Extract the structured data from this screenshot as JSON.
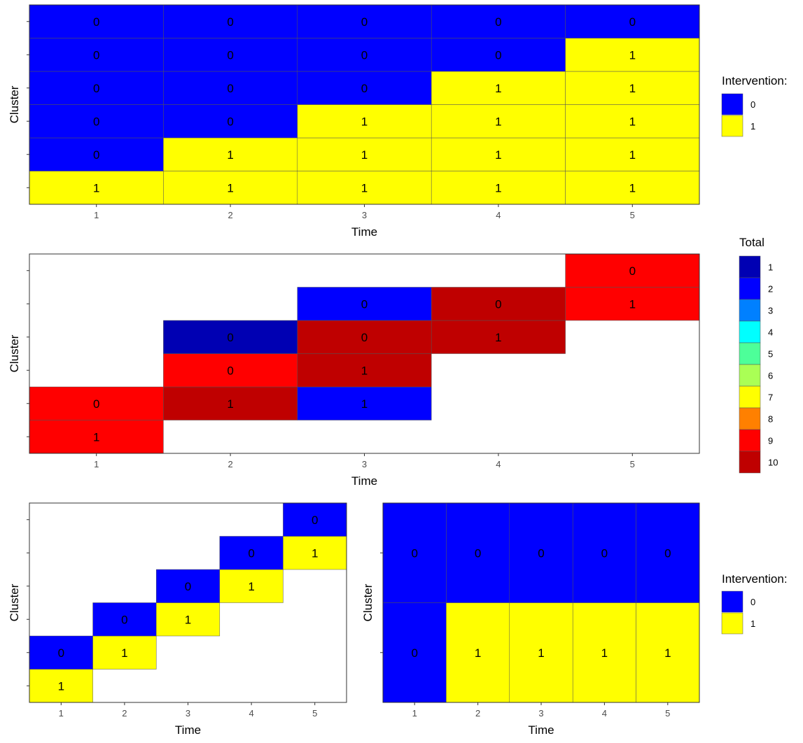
{
  "chart_data": [
    {
      "type": "heatmap",
      "id": "p1",
      "xlabel": "Time",
      "ylabel": "Cluster",
      "x_ticks": [
        "1",
        "2",
        "3",
        "4",
        "5"
      ],
      "n_clusters": 6,
      "fill_by": "intervention",
      "cells": [
        {
          "time": 1,
          "cluster": 1,
          "intervention": 1,
          "label": "1"
        },
        {
          "time": 2,
          "cluster": 1,
          "intervention": 1,
          "label": "1"
        },
        {
          "time": 3,
          "cluster": 1,
          "intervention": 1,
          "label": "1"
        },
        {
          "time": 4,
          "cluster": 1,
          "intervention": 1,
          "label": "1"
        },
        {
          "time": 5,
          "cluster": 1,
          "intervention": 1,
          "label": "1"
        },
        {
          "time": 1,
          "cluster": 2,
          "intervention": 0,
          "label": "0"
        },
        {
          "time": 2,
          "cluster": 2,
          "intervention": 1,
          "label": "1"
        },
        {
          "time": 3,
          "cluster": 2,
          "intervention": 1,
          "label": "1"
        },
        {
          "time": 4,
          "cluster": 2,
          "intervention": 1,
          "label": "1"
        },
        {
          "time": 5,
          "cluster": 2,
          "intervention": 1,
          "label": "1"
        },
        {
          "time": 1,
          "cluster": 3,
          "intervention": 0,
          "label": "0"
        },
        {
          "time": 2,
          "cluster": 3,
          "intervention": 0,
          "label": "0"
        },
        {
          "time": 3,
          "cluster": 3,
          "intervention": 1,
          "label": "1"
        },
        {
          "time": 4,
          "cluster": 3,
          "intervention": 1,
          "label": "1"
        },
        {
          "time": 5,
          "cluster": 3,
          "intervention": 1,
          "label": "1"
        },
        {
          "time": 1,
          "cluster": 4,
          "intervention": 0,
          "label": "0"
        },
        {
          "time": 2,
          "cluster": 4,
          "intervention": 0,
          "label": "0"
        },
        {
          "time": 3,
          "cluster": 4,
          "intervention": 0,
          "label": "0"
        },
        {
          "time": 4,
          "cluster": 4,
          "intervention": 1,
          "label": "1"
        },
        {
          "time": 5,
          "cluster": 4,
          "intervention": 1,
          "label": "1"
        },
        {
          "time": 1,
          "cluster": 5,
          "intervention": 0,
          "label": "0"
        },
        {
          "time": 2,
          "cluster": 5,
          "intervention": 0,
          "label": "0"
        },
        {
          "time": 3,
          "cluster": 5,
          "intervention": 0,
          "label": "0"
        },
        {
          "time": 4,
          "cluster": 5,
          "intervention": 0,
          "label": "0"
        },
        {
          "time": 5,
          "cluster": 5,
          "intervention": 1,
          "label": "1"
        },
        {
          "time": 1,
          "cluster": 6,
          "intervention": 0,
          "label": "0"
        },
        {
          "time": 2,
          "cluster": 6,
          "intervention": 0,
          "label": "0"
        },
        {
          "time": 3,
          "cluster": 6,
          "intervention": 0,
          "label": "0"
        },
        {
          "time": 4,
          "cluster": 6,
          "intervention": 0,
          "label": "0"
        },
        {
          "time": 5,
          "cluster": 6,
          "intervention": 0,
          "label": "0"
        }
      ]
    },
    {
      "type": "heatmap",
      "id": "p2",
      "xlabel": "Time",
      "ylabel": "Cluster",
      "x_ticks": [
        "1",
        "2",
        "3",
        "4",
        "5"
      ],
      "n_clusters": 6,
      "fill_by": "total",
      "cells": [
        {
          "time": 1,
          "cluster": 1,
          "total": 9,
          "label": "1"
        },
        {
          "time": 1,
          "cluster": 2,
          "total": 9,
          "label": "0"
        },
        {
          "time": 2,
          "cluster": 2,
          "total": 10,
          "label": "1"
        },
        {
          "time": 3,
          "cluster": 2,
          "total": 2,
          "label": "1"
        },
        {
          "time": 2,
          "cluster": 3,
          "total": 9,
          "label": "0"
        },
        {
          "time": 3,
          "cluster": 3,
          "total": 10,
          "label": "1"
        },
        {
          "time": 2,
          "cluster": 4,
          "total": 1,
          "label": "0"
        },
        {
          "time": 3,
          "cluster": 4,
          "total": 10,
          "label": "0"
        },
        {
          "time": 4,
          "cluster": 4,
          "total": 10,
          "label": "1"
        },
        {
          "time": 3,
          "cluster": 5,
          "total": 2,
          "label": "0"
        },
        {
          "time": 4,
          "cluster": 5,
          "total": 10,
          "label": "0"
        },
        {
          "time": 5,
          "cluster": 5,
          "total": 9,
          "label": "1"
        },
        {
          "time": 5,
          "cluster": 6,
          "total": 9,
          "label": "0"
        }
      ]
    },
    {
      "type": "heatmap",
      "id": "p3",
      "xlabel": "Time",
      "ylabel": "Cluster",
      "x_ticks": [
        "1",
        "2",
        "3",
        "4",
        "5"
      ],
      "n_clusters": 6,
      "fill_by": "intervention",
      "cells": [
        {
          "time": 1,
          "cluster": 1,
          "intervention": 1,
          "label": "1"
        },
        {
          "time": 1,
          "cluster": 2,
          "intervention": 0,
          "label": "0"
        },
        {
          "time": 2,
          "cluster": 2,
          "intervention": 1,
          "label": "1"
        },
        {
          "time": 2,
          "cluster": 3,
          "intervention": 0,
          "label": "0"
        },
        {
          "time": 3,
          "cluster": 3,
          "intervention": 1,
          "label": "1"
        },
        {
          "time": 3,
          "cluster": 4,
          "intervention": 0,
          "label": "0"
        },
        {
          "time": 4,
          "cluster": 4,
          "intervention": 1,
          "label": "1"
        },
        {
          "time": 4,
          "cluster": 5,
          "intervention": 0,
          "label": "0"
        },
        {
          "time": 5,
          "cluster": 5,
          "intervention": 1,
          "label": "1"
        },
        {
          "time": 5,
          "cluster": 6,
          "intervention": 0,
          "label": "0"
        }
      ]
    },
    {
      "type": "heatmap",
      "id": "p4",
      "xlabel": "Time",
      "ylabel": "Cluster",
      "x_ticks": [
        "1",
        "2",
        "3",
        "4",
        "5"
      ],
      "n_clusters": 2,
      "fill_by": "intervention",
      "cells": [
        {
          "time": 1,
          "cluster": 1,
          "intervention": 0,
          "label": "0"
        },
        {
          "time": 2,
          "cluster": 1,
          "intervention": 1,
          "label": "1"
        },
        {
          "time": 3,
          "cluster": 1,
          "intervention": 1,
          "label": "1"
        },
        {
          "time": 4,
          "cluster": 1,
          "intervention": 1,
          "label": "1"
        },
        {
          "time": 5,
          "cluster": 1,
          "intervention": 1,
          "label": "1"
        },
        {
          "time": 1,
          "cluster": 2,
          "intervention": 0,
          "label": "0"
        },
        {
          "time": 2,
          "cluster": 2,
          "intervention": 0,
          "label": "0"
        },
        {
          "time": 3,
          "cluster": 2,
          "intervention": 0,
          "label": "0"
        },
        {
          "time": 4,
          "cluster": 2,
          "intervention": 0,
          "label": "0"
        },
        {
          "time": 5,
          "cluster": 2,
          "intervention": 0,
          "label": "0"
        }
      ]
    }
  ],
  "legends": {
    "intervention": {
      "title": "Intervention:",
      "items": [
        {
          "label": "0",
          "color": "#0000FF"
        },
        {
          "label": "1",
          "color": "#FFFF00"
        }
      ]
    },
    "total": {
      "title": "Total",
      "items": [
        {
          "label": "1",
          "color": "#0000B3"
        },
        {
          "label": "2",
          "color": "#0000FF"
        },
        {
          "label": "3",
          "color": "#0080FF"
        },
        {
          "label": "4",
          "color": "#00FFFF"
        },
        {
          "label": "5",
          "color": "#4DFF99"
        },
        {
          "label": "6",
          "color": "#AAFF55"
        },
        {
          "label": "7",
          "color": "#FFFF00"
        },
        {
          "label": "8",
          "color": "#FF8000"
        },
        {
          "label": "9",
          "color": "#FF0000"
        },
        {
          "label": "10",
          "color": "#BF0000"
        }
      ]
    }
  }
}
